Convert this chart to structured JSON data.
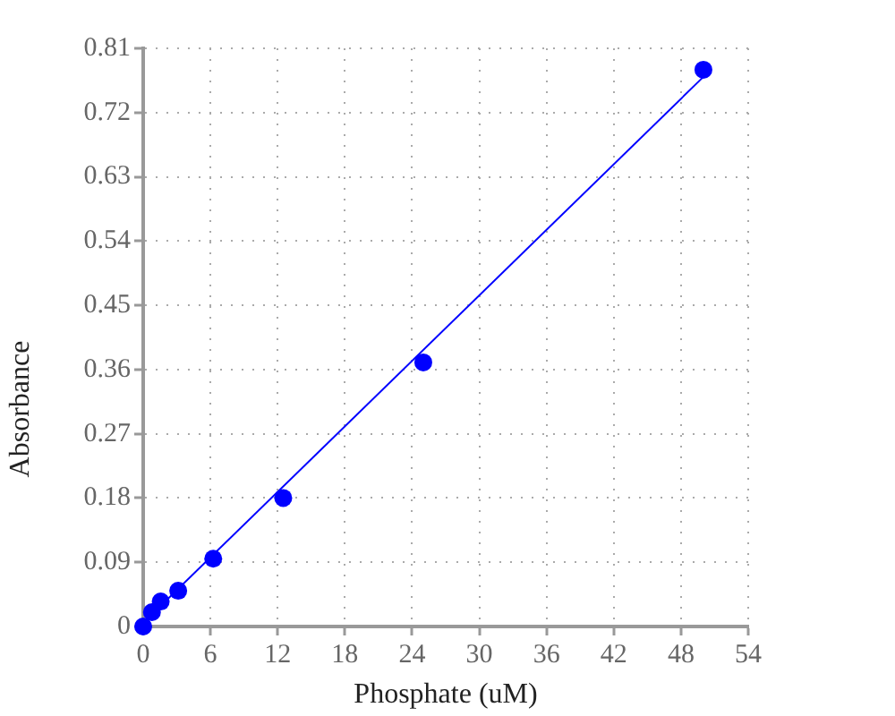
{
  "chart_data": {
    "type": "scatter",
    "xlabel": "Phosphate (uM)",
    "ylabel": "Absorbance",
    "xlim": [
      0,
      54
    ],
    "ylim": [
      0,
      0.81
    ],
    "xticks": [
      0,
      6,
      12,
      18,
      24,
      30,
      36,
      42,
      48,
      54
    ],
    "yticks": [
      0,
      0.09,
      0.18,
      0.27,
      0.36,
      0.45,
      0.54,
      0.63,
      0.72,
      0.81
    ],
    "grid": true,
    "marker": "circle",
    "series": [
      {
        "color": "#0000ff",
        "x": [
          0,
          0.78125,
          1.5625,
          3.125,
          6.25,
          12.5,
          25,
          50
        ],
        "values": [
          0,
          0.02,
          0.035,
          0.05,
          0.095,
          0.18,
          0.37,
          0.78
        ]
      },
      {
        "type": "line",
        "color": "#0000ff",
        "marker": "none",
        "x": [
          0,
          50
        ],
        "values": [
          0.005,
          0.77
        ]
      }
    ]
  }
}
